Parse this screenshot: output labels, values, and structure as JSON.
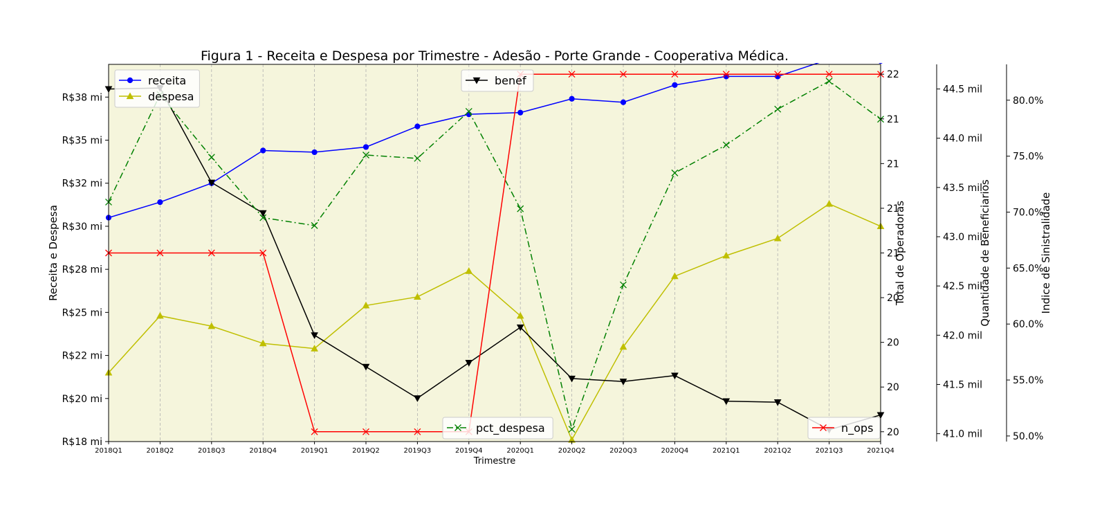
{
  "chart_data": {
    "type": "line",
    "title": "Figura 1 - Receita e Despesa por Trimestre - Adesão - Porte Grande - Cooperativa Médica.",
    "xlabel": "Trimestre",
    "categories": [
      "2018Q1",
      "2018Q2",
      "2018Q3",
      "2018Q4",
      "2019Q1",
      "2019Q2",
      "2019Q3",
      "2019Q4",
      "2020Q1",
      "2020Q2",
      "2020Q3",
      "2020Q4",
      "2021Q1",
      "2021Q2",
      "2021Q3",
      "2021Q4"
    ],
    "background_color": "#f5f5dc",
    "grid": "vertical dashed",
    "axes": {
      "receita_despesa": {
        "label": "Receita e Despesa",
        "side": "left",
        "ylim": [
          17.9,
          39.8
        ],
        "ticks": [
          {
            "value": 17.9,
            "label": "R$18 mi"
          },
          {
            "value": 20.4,
            "label": "R$20 mi"
          },
          {
            "value": 22.9,
            "label": "R$22 mi"
          },
          {
            "value": 25.4,
            "label": "R$25 mi"
          },
          {
            "value": 27.9,
            "label": "R$28 mi"
          },
          {
            "value": 30.4,
            "label": "R$30 mi"
          },
          {
            "value": 32.9,
            "label": "R$32 mi"
          },
          {
            "value": 35.4,
            "label": "R$35 mi"
          },
          {
            "value": 37.9,
            "label": "R$38 mi"
          }
        ]
      },
      "operadoras": {
        "label": "Total de Operadoras",
        "side": "right-1",
        "ylim": [
          19.945,
          22.055
        ],
        "ticks": [
          {
            "value": 20.0,
            "label": "20"
          },
          {
            "value": 20.25,
            "label": "20"
          },
          {
            "value": 20.5,
            "label": "20"
          },
          {
            "value": 20.75,
            "label": "20"
          },
          {
            "value": 21.0,
            "label": "21"
          },
          {
            "value": 21.25,
            "label": "21"
          },
          {
            "value": 21.5,
            "label": "21"
          },
          {
            "value": 21.75,
            "label": "21"
          },
          {
            "value": 22.0,
            "label": "22"
          }
        ]
      },
      "beneficiarios": {
        "label": "Quantidade de Beneficiarios",
        "side": "right-2",
        "ylim": [
          40.92,
          44.75
        ],
        "ticks": [
          {
            "value": 41.0,
            "label": "41.0 mil"
          },
          {
            "value": 41.5,
            "label": "41.5 mil"
          },
          {
            "value": 42.0,
            "label": "42.0 mil"
          },
          {
            "value": 42.5,
            "label": "42.5 mil"
          },
          {
            "value": 43.0,
            "label": "43.0 mil"
          },
          {
            "value": 43.5,
            "label": "43.5 mil"
          },
          {
            "value": 44.0,
            "label": "44.0 mil"
          },
          {
            "value": 44.5,
            "label": "44.5 mil"
          }
        ]
      },
      "sinistralidade": {
        "label": "Indice de Sinistralidade",
        "side": "right-3",
        "ylim": [
          49.5,
          83.2
        ],
        "ticks": [
          {
            "value": 50,
            "label": "50.0%"
          },
          {
            "value": 55,
            "label": "55.0%"
          },
          {
            "value": 60,
            "label": "60.0%"
          },
          {
            "value": 65,
            "label": "65.0%"
          },
          {
            "value": 70,
            "label": "70.0%"
          },
          {
            "value": 75,
            "label": "75.0%"
          },
          {
            "value": 80,
            "label": "80.0%"
          }
        ]
      }
    },
    "series": [
      {
        "name": "receita",
        "axis": "receita_despesa",
        "color": "#0000ff",
        "marker": "circle",
        "dash": "solid",
        "values": [
          30.9,
          31.8,
          32.9,
          34.8,
          34.7,
          35.0,
          36.2,
          36.9,
          37.0,
          37.8,
          37.6,
          38.6,
          39.1,
          39.1,
          40.1,
          40.0
        ]
      },
      {
        "name": "despesa",
        "axis": "receita_despesa",
        "color": "#bfbf00",
        "marker": "triangle-up",
        "dash": "solid",
        "values": [
          21.9,
          25.2,
          24.6,
          23.6,
          23.3,
          25.8,
          26.3,
          27.8,
          25.2,
          18.0,
          23.4,
          27.5,
          28.7,
          29.7,
          31.7,
          30.4
        ]
      },
      {
        "name": "benef",
        "axis": "beneficiarios",
        "color": "#000000",
        "marker": "triangle-down",
        "dash": "solid",
        "values": [
          44.5,
          44.51,
          43.55,
          43.24,
          42.0,
          41.68,
          41.36,
          41.72,
          42.08,
          41.56,
          41.53,
          41.59,
          41.33,
          41.32,
          41.04,
          41.19
        ]
      },
      {
        "name": "pct_despesa",
        "axis": "sinistralidade",
        "color": "#008000",
        "marker": "x",
        "dash": "dashdot",
        "values": [
          70.9,
          80.5,
          74.9,
          69.5,
          68.8,
          75.1,
          74.8,
          79.0,
          70.3,
          50.6,
          63.5,
          73.5,
          76.0,
          79.2,
          81.7,
          78.3
        ]
      },
      {
        "name": "n_ops",
        "axis": "operadoras",
        "color": "#ff0000",
        "marker": "x",
        "dash": "solid",
        "values": [
          21.0,
          21.0,
          21.0,
          21.0,
          20.0,
          20.0,
          20.0,
          20.0,
          22.0,
          22.0,
          22.0,
          22.0,
          22.0,
          22.0,
          22.0,
          22.0
        ]
      }
    ],
    "legends": [
      {
        "position": "upper-left",
        "entries": [
          "receita",
          "despesa"
        ]
      },
      {
        "position": "upper-center",
        "entries": [
          "benef"
        ]
      },
      {
        "position": "lower-center",
        "entries": [
          "pct_despesa"
        ]
      },
      {
        "position": "lower-right",
        "entries": [
          "n_ops"
        ]
      }
    ]
  }
}
